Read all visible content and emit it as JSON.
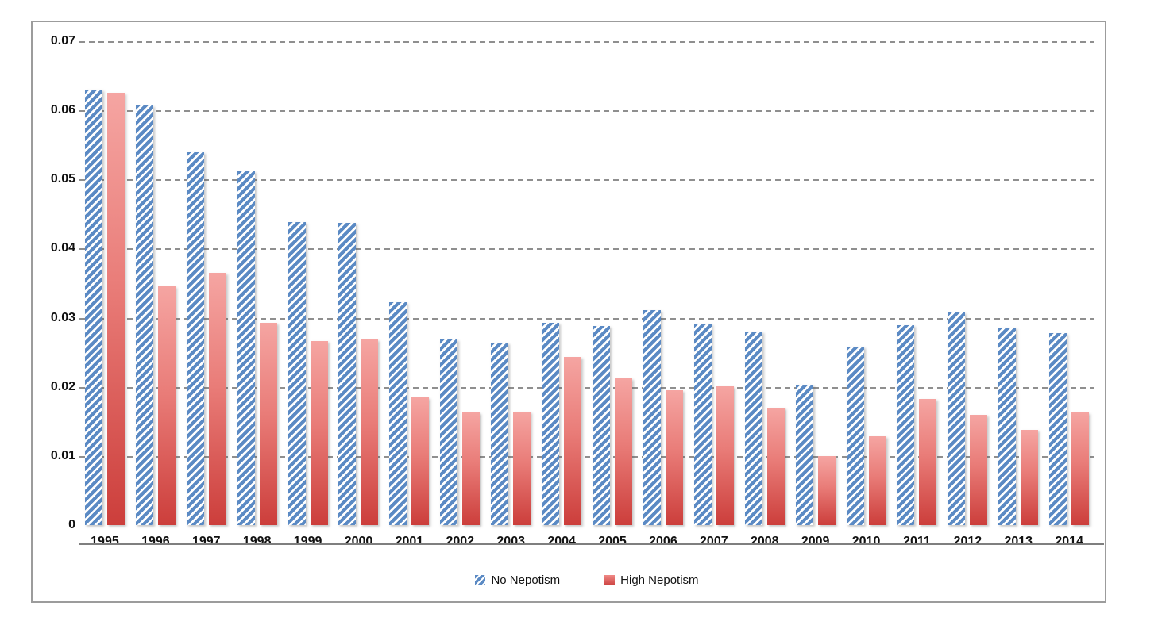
{
  "chart_data": {
    "type": "bar",
    "title": "",
    "categories": [
      "1995",
      "1996",
      "1997",
      "1998",
      "1999",
      "2000",
      "2001",
      "2002",
      "2003",
      "2004",
      "2005",
      "2006",
      "2007",
      "2008",
      "2009",
      "2010",
      "2011",
      "2012",
      "2013",
      "2014"
    ],
    "series": [
      {
        "name": "No Nepotism",
        "style": "blue-diagonal-hatch",
        "color": "#5b8ac4",
        "values": [
          0.063,
          0.0607,
          0.0539,
          0.0512,
          0.0438,
          0.0437,
          0.0323,
          0.0269,
          0.0264,
          0.0293,
          0.0288,
          0.0311,
          0.0292,
          0.028,
          0.0203,
          0.0258,
          0.0289,
          0.0308,
          0.0286,
          0.0278
        ]
      },
      {
        "name": "High Nepotism",
        "style": "red-vertical-gradient",
        "color_top": "#f5a5a2",
        "color_bottom": "#cc3e3b",
        "values": [
          0.0625,
          0.0345,
          0.0365,
          0.0293,
          0.0266,
          0.0269,
          0.0185,
          0.0163,
          0.0164,
          0.0243,
          0.0212,
          0.0195,
          0.0201,
          0.017,
          0.01,
          0.0129,
          0.0182,
          0.0159,
          0.0138,
          0.0163
        ]
      }
    ],
    "xlabel": "",
    "ylabel": "",
    "ylim": [
      0,
      0.07
    ],
    "ytick_step": 0.01,
    "ytick_labels": [
      "0.07",
      "0.06",
      "0.05",
      "0.04",
      "0.03",
      "0.02",
      "0.01",
      "0"
    ],
    "grid": "horizontal-dashed",
    "gridline_color": "#8f8f8f",
    "axis_line_color": "#7f7f7f",
    "legend_position": "bottom-center"
  }
}
